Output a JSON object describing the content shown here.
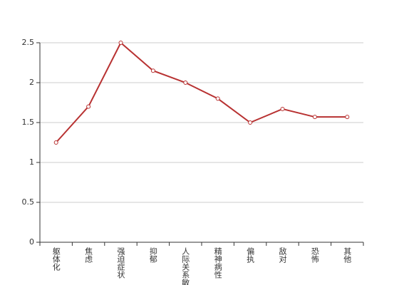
{
  "chart_data": {
    "type": "line",
    "categories": [
      "躯体化",
      "焦虑",
      "强迫症状",
      "抑郁",
      "人际关系敏感",
      "精神病性",
      "偏执",
      "敌对",
      "恐怖",
      "其他"
    ],
    "values": [
      1.25,
      1.7,
      2.5,
      2.15,
      2.0,
      1.8,
      1.5,
      1.67,
      1.57,
      1.57
    ],
    "color": "#b83232",
    "ylim": [
      0,
      2.5
    ],
    "yticks": [
      0,
      0.5,
      1,
      1.5,
      2,
      2.5
    ],
    "grid": true
  }
}
